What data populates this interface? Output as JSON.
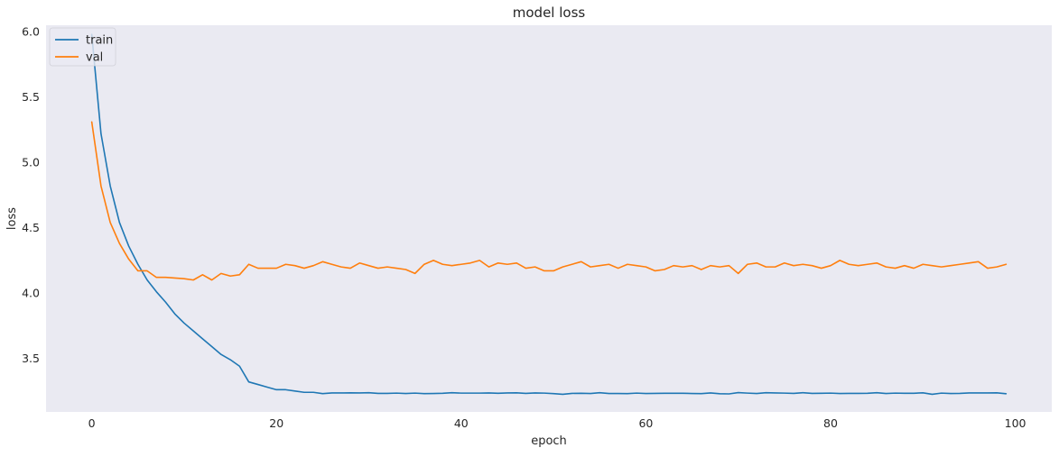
{
  "chart_data": {
    "type": "line",
    "title": "model loss",
    "xlabel": "epoch",
    "ylabel": "loss",
    "xlim": [
      -4.95,
      103.95
    ],
    "ylim": [
      3.09,
      6.05
    ],
    "xticks": [
      0,
      20,
      40,
      60,
      80,
      100
    ],
    "yticks": [
      3.5,
      4.0,
      4.5,
      5.0,
      5.5,
      6.0
    ],
    "ytick_labels": [
      "3.5",
      "4.0",
      "4.5",
      "5.0",
      "5.5",
      "6.0"
    ],
    "grid": false,
    "legend_position": "upper left",
    "background": "#eaeaf2",
    "series": [
      {
        "name": "train",
        "color": "#1f77b4",
        "x": [
          0,
          1,
          2,
          3,
          4,
          5,
          6,
          7,
          8,
          9,
          10,
          11,
          12,
          13,
          14,
          15,
          16,
          17,
          18,
          19,
          20,
          21,
          22,
          23,
          24,
          25,
          26,
          27,
          28,
          29,
          30,
          31,
          32,
          33,
          34,
          35,
          36,
          37,
          38,
          39,
          40,
          41,
          42,
          43,
          44,
          45,
          46,
          47,
          48,
          49,
          50,
          51,
          52,
          53,
          54,
          55,
          56,
          57,
          58,
          59,
          60,
          61,
          62,
          63,
          64,
          65,
          66,
          67,
          68,
          69,
          70,
          71,
          72,
          73,
          74,
          75,
          76,
          77,
          78,
          79,
          80,
          81,
          82,
          83,
          84,
          85,
          86,
          87,
          88,
          89,
          90,
          91,
          92,
          93,
          94,
          95,
          96,
          97,
          98,
          99
        ],
        "values": [
          5.98,
          5.22,
          4.82,
          4.54,
          4.36,
          4.22,
          4.1,
          4.01,
          3.93,
          3.84,
          3.77,
          3.71,
          3.65,
          3.59,
          3.53,
          3.49,
          3.44,
          3.32,
          3.3,
          3.28,
          3.26,
          3.26,
          3.25,
          3.24,
          3.24,
          3.23,
          3.235,
          3.235,
          3.236,
          3.235,
          3.237,
          3.232,
          3.232,
          3.234,
          3.231,
          3.234,
          3.23,
          3.231,
          3.233,
          3.237,
          3.234,
          3.234,
          3.234,
          3.235,
          3.233,
          3.235,
          3.236,
          3.232,
          3.235,
          3.234,
          3.23,
          3.225,
          3.232,
          3.233,
          3.231,
          3.237,
          3.231,
          3.231,
          3.23,
          3.234,
          3.231,
          3.232,
          3.233,
          3.233,
          3.233,
          3.231,
          3.23,
          3.235,
          3.229,
          3.228,
          3.238,
          3.234,
          3.231,
          3.237,
          3.235,
          3.234,
          3.232,
          3.237,
          3.232,
          3.233,
          3.234,
          3.231,
          3.232,
          3.232,
          3.233,
          3.237,
          3.231,
          3.234,
          3.233,
          3.233,
          3.236,
          3.225,
          3.234,
          3.231,
          3.232,
          3.235,
          3.235,
          3.235,
          3.236,
          3.229
        ]
      },
      {
        "name": "val",
        "color": "#ff7f0e",
        "x": [
          0,
          1,
          2,
          3,
          4,
          5,
          6,
          7,
          8,
          9,
          10,
          11,
          12,
          13,
          14,
          15,
          16,
          17,
          18,
          19,
          20,
          21,
          22,
          23,
          24,
          25,
          26,
          27,
          28,
          29,
          30,
          31,
          32,
          33,
          34,
          35,
          36,
          37,
          38,
          39,
          40,
          41,
          42,
          43,
          44,
          45,
          46,
          47,
          48,
          49,
          50,
          51,
          52,
          53,
          54,
          55,
          56,
          57,
          58,
          59,
          60,
          61,
          62,
          63,
          64,
          65,
          66,
          67,
          68,
          69,
          70,
          71,
          72,
          73,
          74,
          75,
          76,
          77,
          78,
          79,
          80,
          81,
          82,
          83,
          84,
          85,
          86,
          87,
          88,
          89,
          90,
          91,
          92,
          93,
          94,
          95,
          96,
          97,
          98,
          99
        ],
        "values": [
          5.31,
          4.82,
          4.54,
          4.38,
          4.26,
          4.17,
          4.17,
          4.12,
          4.12,
          4.115,
          4.11,
          4.1,
          4.14,
          4.1,
          4.15,
          4.13,
          4.14,
          4.22,
          4.19,
          4.19,
          4.19,
          4.22,
          4.21,
          4.19,
          4.21,
          4.24,
          4.22,
          4.2,
          4.19,
          4.23,
          4.21,
          4.19,
          4.2,
          4.19,
          4.18,
          4.15,
          4.22,
          4.25,
          4.22,
          4.21,
          4.22,
          4.23,
          4.25,
          4.2,
          4.23,
          4.22,
          4.23,
          4.19,
          4.2,
          4.17,
          4.17,
          4.2,
          4.22,
          4.24,
          4.2,
          4.21,
          4.22,
          4.19,
          4.22,
          4.21,
          4.2,
          4.17,
          4.18,
          4.21,
          4.2,
          4.21,
          4.18,
          4.21,
          4.2,
          4.21,
          4.15,
          4.22,
          4.23,
          4.2,
          4.2,
          4.23,
          4.21,
          4.22,
          4.21,
          4.19,
          4.21,
          4.25,
          4.22,
          4.21,
          4.22,
          4.23,
          4.2,
          4.19,
          4.21,
          4.19,
          4.22,
          4.21,
          4.2,
          4.21,
          4.22,
          4.23,
          4.24,
          4.19,
          4.2,
          4.22
        ]
      }
    ]
  }
}
